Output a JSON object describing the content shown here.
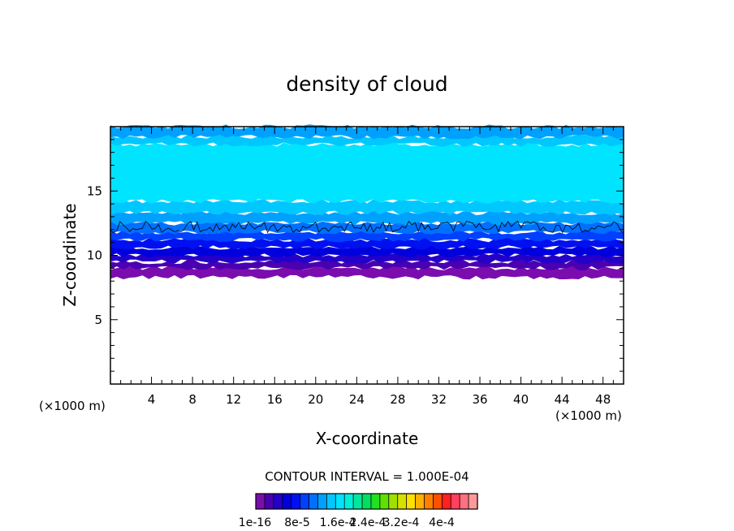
{
  "chart_data": {
    "type": "heatmap",
    "title": "density of cloud",
    "xlabel": "X-coordinate",
    "ylabel": "Z-coordinate",
    "x_unit_left": "(×1000 m)",
    "x_unit_right": "(×1000 m)",
    "xlim": [
      0,
      50
    ],
    "ylim": [
      0,
      20
    ],
    "x_ticks": [
      4,
      8,
      12,
      16,
      20,
      24,
      28,
      32,
      36,
      40,
      44,
      48
    ],
    "x_tick_labels": [
      "4",
      "8",
      "12",
      "16",
      "20",
      "24",
      "28",
      "32",
      "36",
      "40",
      "44",
      "48"
    ],
    "y_ticks": [
      5,
      10,
      15
    ],
    "y_tick_labels": [
      "5",
      "10",
      "15"
    ],
    "contour_interval_text": "CONTOUR INTERVAL = 1.000E-04",
    "colorbar_labels": [
      "1e-16",
      "8e-5",
      "1.6e-4",
      "2.4e-4",
      "3.2e-4",
      "4e-4"
    ],
    "colorbar_colors": [
      "#7b0dae",
      "#4a00b0",
      "#2400c8",
      "#0000dc",
      "#0010f0",
      "#0040ff",
      "#0070ff",
      "#00a0ff",
      "#00c8ff",
      "#00e4ff",
      "#00f0d8",
      "#00e8a0",
      "#00e060",
      "#20e020",
      "#60e000",
      "#a0e000",
      "#d8e000",
      "#ffe000",
      "#ffb000",
      "#ff8000",
      "#ff5000",
      "#ff2020",
      "#ff4060",
      "#ff7080",
      "#ff9a9a"
    ],
    "bands": [
      {
        "z_bottom": 8.3,
        "z_top": 9.0,
        "color": "#7b0dae"
      },
      {
        "z_bottom": 9.0,
        "z_top": 9.5,
        "color": "#4a00b0"
      },
      {
        "z_bottom": 9.5,
        "z_top": 10.0,
        "color": "#2400c8"
      },
      {
        "z_bottom": 10.0,
        "z_top": 10.6,
        "color": "#0000dc"
      },
      {
        "z_bottom": 10.6,
        "z_top": 11.2,
        "color": "#0010f0"
      },
      {
        "z_bottom": 11.2,
        "z_top": 11.8,
        "color": "#0040ff"
      },
      {
        "z_bottom": 11.8,
        "z_top": 12.5,
        "color": "#0070ff"
      },
      {
        "z_bottom": 12.5,
        "z_top": 13.3,
        "color": "#00a0ff"
      },
      {
        "z_bottom": 13.3,
        "z_top": 14.2,
        "color": "#00c8ff"
      },
      {
        "z_bottom": 14.2,
        "z_top": 18.6,
        "color": "#00e4ff"
      },
      {
        "z_bottom": 18.6,
        "z_top": 19.2,
        "color": "#00c8ff"
      },
      {
        "z_bottom": 19.2,
        "z_top": 20.0,
        "color": "#00a0ff"
      }
    ],
    "contour_line_z": 12.2
  }
}
